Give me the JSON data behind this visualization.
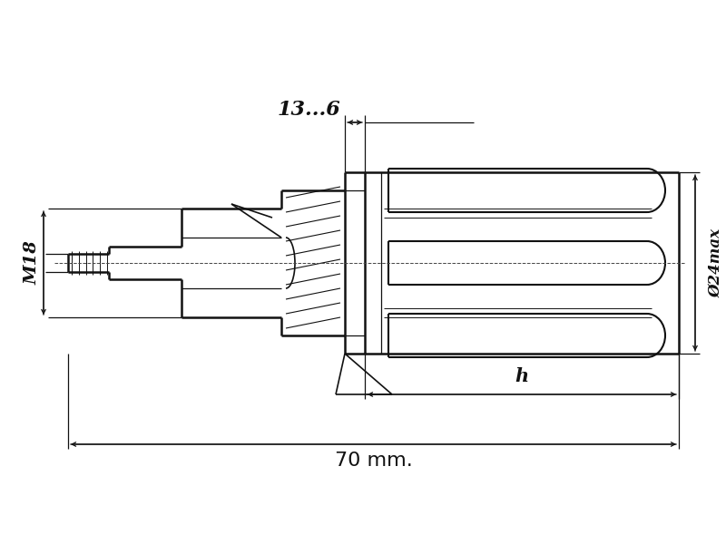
{
  "bg_color": "#ffffff",
  "line_color": "#111111",
  "dim_13_6": "13...6",
  "dim_M18": "M18",
  "dim_phi24": "Ø24max",
  "dim_h": "h",
  "dim_70mm": "70 mm.",
  "fig_width": 8.0,
  "fig_height": 6.0,
  "dpi": 100,
  "lw_main": 1.8,
  "lw_dim": 0.9
}
